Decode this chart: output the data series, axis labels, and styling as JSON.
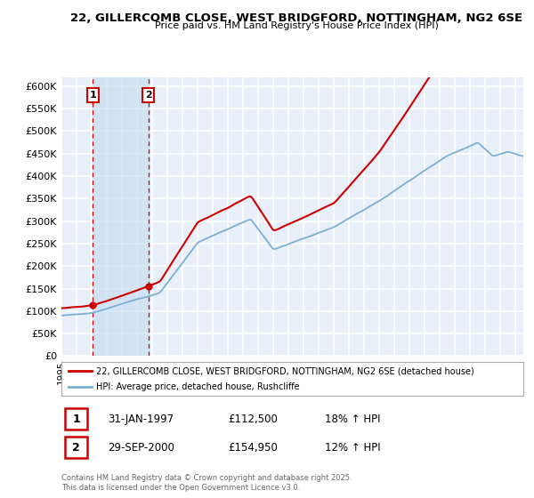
{
  "title1": "22, GILLERCOMB CLOSE, WEST BRIDGFORD, NOTTINGHAM, NG2 6SE",
  "title2": "Price paid vs. HM Land Registry's House Price Index (HPI)",
  "legend_line1": "22, GILLERCOMB CLOSE, WEST BRIDGFORD, NOTTINGHAM, NG2 6SE (detached house)",
  "legend_line2": "HPI: Average price, detached house, Rushcliffe",
  "annotation1_date": "31-JAN-1997",
  "annotation1_price": "£112,500",
  "annotation1_hpi": "18% ↑ HPI",
  "annotation2_date": "29-SEP-2000",
  "annotation2_price": "£154,950",
  "annotation2_hpi": "12% ↑ HPI",
  "footer": "Contains HM Land Registry data © Crown copyright and database right 2025.\nThis data is licensed under the Open Government Licence v3.0.",
  "bg_color": "#e8eff8",
  "grid_color": "#ffffff",
  "line_color_red": "#cc0000",
  "line_color_blue": "#7ab0d4",
  "shade_color": "#c8dff0",
  "ylim": [
    0,
    620000
  ],
  "yticks": [
    0,
    50000,
    100000,
    150000,
    200000,
    250000,
    300000,
    350000,
    400000,
    450000,
    500000,
    550000,
    600000
  ],
  "purchase1_year": 1997.08,
  "purchase1_value": 112500,
  "purchase2_year": 2000.75,
  "purchase2_value": 154950,
  "xmin": 1995.0,
  "xmax": 2025.5
}
